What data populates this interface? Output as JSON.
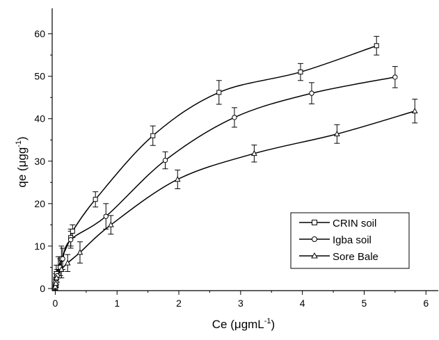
{
  "chart_data": {
    "type": "line",
    "xlabel": "Ce (μgmL",
    "xlabel_sup": "-1",
    "xlabel_close": ")",
    "ylabel": "qe (μgg",
    "ylabel_sup": "-1",
    "ylabel_close": ")",
    "xlim": [
      -0.05,
      6.2
    ],
    "ylim": [
      -0.5,
      66
    ],
    "xticks": [
      0,
      1,
      2,
      3,
      4,
      5,
      6
    ],
    "yticks": [
      0,
      10,
      20,
      30,
      40,
      50,
      60
    ],
    "grid": false,
    "legend_position": "lower-right",
    "series": [
      {
        "name": "CRIN soil",
        "marker": "square",
        "x": [
          0.0,
          0.01,
          0.02,
          0.05,
          0.1,
          0.25,
          0.28,
          0.65,
          1.58,
          2.65,
          3.97,
          5.2
        ],
        "y": [
          0.5,
          2.0,
          3.5,
          5.0,
          7.0,
          12.0,
          13.5,
          21.0,
          36.0,
          46.2,
          51.0,
          57.2
        ],
        "err": [
          0.8,
          1.5,
          2.0,
          2.5,
          3.0,
          2.0,
          1.5,
          1.8,
          2.3,
          2.8,
          2.0,
          2.2
        ]
      },
      {
        "name": "Igba soil",
        "marker": "circle",
        "x": [
          0.0,
          0.01,
          0.03,
          0.08,
          0.12,
          0.25,
          0.82,
          1.78,
          2.9,
          4.15,
          5.5
        ],
        "y": [
          0.5,
          1.5,
          3.0,
          5.0,
          7.0,
          11.5,
          17.0,
          30.2,
          40.3,
          46.0,
          49.8
        ],
        "err": [
          0.8,
          1.2,
          1.5,
          2.0,
          2.5,
          2.0,
          3.0,
          2.0,
          2.3,
          2.5,
          2.5
        ]
      },
      {
        "name": "Sore Bale",
        "marker": "triangle",
        "x": [
          0.0,
          0.01,
          0.02,
          0.1,
          0.2,
          0.4,
          0.9,
          1.98,
          3.22,
          4.56,
          5.82
        ],
        "y": [
          0.5,
          1.2,
          2.5,
          4.5,
          6.0,
          8.5,
          15.0,
          25.7,
          31.8,
          36.4,
          41.8
        ],
        "err": [
          0.8,
          1.0,
          1.5,
          2.0,
          2.0,
          2.5,
          2.2,
          2.2,
          2.0,
          2.2,
          2.8
        ]
      }
    ]
  }
}
